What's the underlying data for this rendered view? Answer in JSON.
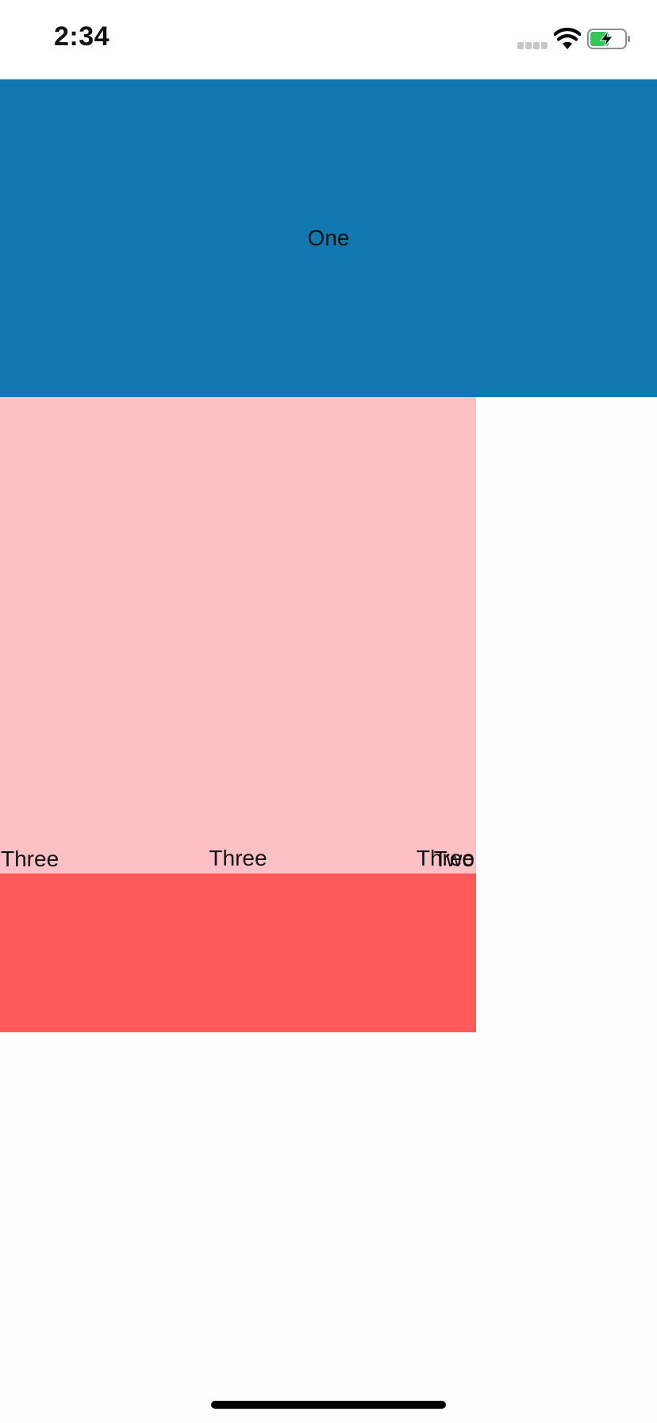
{
  "status_bar": {
    "time": "2:34",
    "icons": [
      "cellular-signal-icon",
      "wifi-icon",
      "battery-charging-icon"
    ]
  },
  "boxes": {
    "one": {
      "label": "One",
      "color": "#1179af"
    },
    "two": {
      "label": "Two",
      "color": "#fcc0c5"
    },
    "three": {
      "labels": [
        "Three",
        "Three",
        "Three"
      ],
      "color": "#fd5a59"
    }
  },
  "battery": {
    "level": 0.55,
    "fill_color": "#36c759"
  }
}
